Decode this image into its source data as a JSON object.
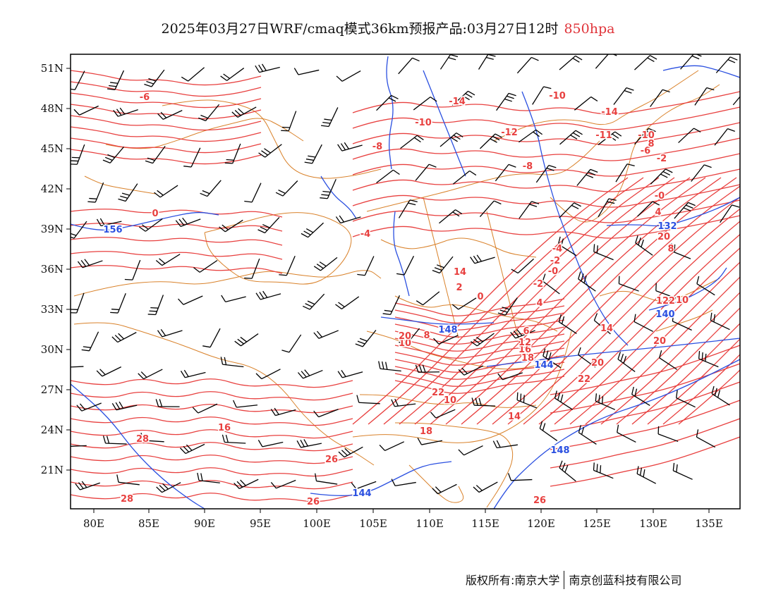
{
  "title": {
    "main": "2025年03月27日WRF/cmaq模式36km预报产品:03月27日12时",
    "level": "850hpa"
  },
  "axes": {
    "lon_labels": [
      "80E",
      "85E",
      "90E",
      "95E",
      "100E",
      "105E",
      "110E",
      "115E",
      "120E",
      "125E",
      "130E",
      "135E"
    ],
    "lat_labels": [
      "51N",
      "48N",
      "45N",
      "42N",
      "39N",
      "36N",
      "33N",
      "30N",
      "27N",
      "24N",
      "21N"
    ]
  },
  "colors": {
    "temperature_contour": "#e8403f",
    "height_contour": "#2a4fe0",
    "boundary": "#d9822b",
    "wind_barb": "#000000",
    "frame": "#000000"
  },
  "temperature_labels": [
    "-6",
    "-10",
    "-14",
    "-12",
    "-10",
    "-14",
    "-11",
    "-10",
    "-8",
    "-6",
    "-2",
    "-8",
    "-0",
    "0",
    "-4",
    "4",
    "-4",
    "-2",
    "-0",
    "-2",
    "2",
    "0",
    "4",
    "6",
    "8",
    "10",
    "12",
    "14",
    "16",
    "18",
    "20",
    "22",
    "10",
    "14",
    "16",
    "18",
    "20",
    "20",
    "22",
    "26",
    "26",
    "28",
    "28",
    "26",
    "20",
    "8",
    "10",
    "12",
    "12",
    "14",
    "8"
  ],
  "height_labels": [
    "156",
    "148",
    "144",
    "144",
    "148",
    "140",
    "132"
  ],
  "footer": {
    "left": "版权所有:南京大学",
    "right": "南京创蓝科技有限公司"
  }
}
